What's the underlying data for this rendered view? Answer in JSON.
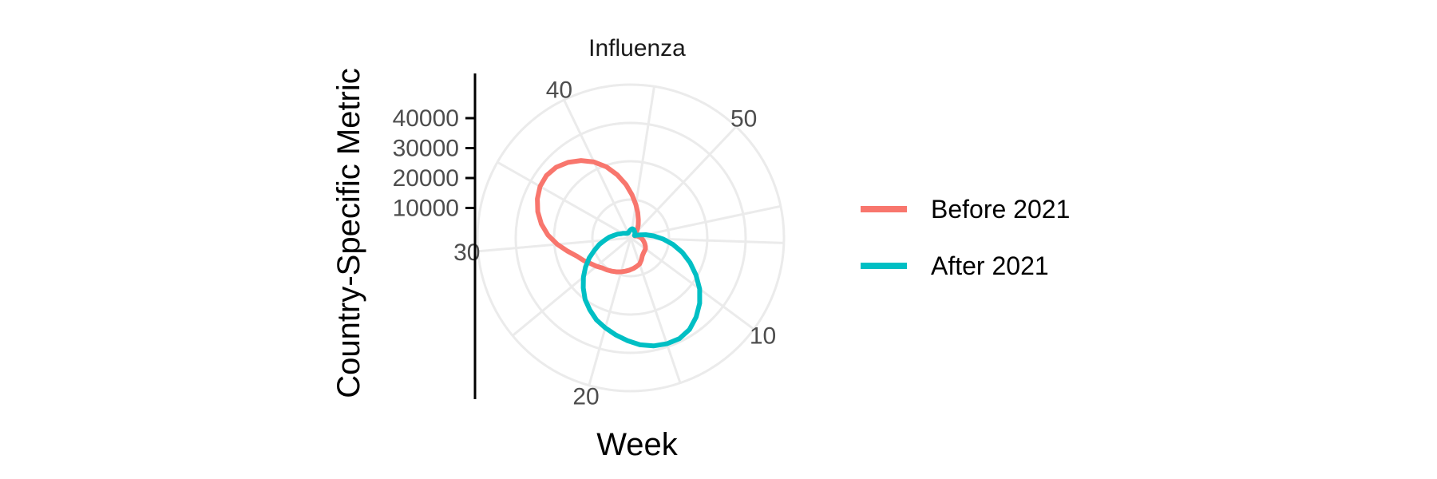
{
  "chart_data": {
    "type": "line",
    "coord": "polar",
    "title": "Influenza",
    "xlabel": "Week",
    "ylabel": "Country-Specific Metric",
    "theta_ticks": [
      "10",
      "20",
      "30",
      "40",
      "50"
    ],
    "y_ticks": [
      "10000",
      "20000",
      "30000",
      "40000"
    ],
    "ylim": [
      0,
      50000
    ],
    "x": [
      1,
      2,
      3,
      4,
      5,
      6,
      7,
      8,
      9,
      10,
      11,
      12,
      13,
      14,
      15,
      16,
      17,
      18,
      19,
      20,
      21,
      22,
      23,
      24,
      25,
      26,
      27,
      28,
      29,
      30,
      31,
      32,
      33,
      34,
      35,
      36,
      37,
      38,
      39,
      40,
      41,
      42,
      43,
      44,
      45,
      46,
      47,
      48,
      49,
      50,
      51,
      52
    ],
    "series": [
      {
        "name": "Before 2021",
        "color": "#F8766D",
        "values": [
          1500,
          2000,
          2500,
          3000,
          3500,
          4000,
          4500,
          5000,
          5500,
          6000,
          6200,
          6500,
          7000,
          8000,
          9000,
          9500,
          10000,
          10500,
          11000,
          11500,
          12000,
          12500,
          13000,
          13500,
          14500,
          15500,
          17000,
          18500,
          21000,
          24000,
          27000,
          29500,
          31500,
          33000,
          34000,
          34200,
          33500,
          32000,
          30000,
          27500,
          24500,
          21000,
          17500,
          14000,
          11000,
          8500,
          6500,
          5000,
          3800,
          2800,
          2000,
          1500
        ]
      },
      {
        "name": "After 2021",
        "color": "#00BFC4",
        "values": [
          2000,
          3000,
          5000,
          7500,
          10500,
          14000,
          17500,
          21000,
          24500,
          28000,
          31000,
          33500,
          35500,
          36500,
          36500,
          36000,
          35000,
          33500,
          32000,
          30500,
          29000,
          27000,
          25000,
          22500,
          20000,
          17500,
          15000,
          12500,
          10500,
          8500,
          7000,
          5500,
          4500,
          3500,
          3000,
          2500,
          2200,
          2000,
          1800,
          1800,
          2000,
          2200,
          2500,
          2800,
          3000,
          3000,
          2800,
          2500,
          2300,
          2000,
          1800,
          1500
        ]
      }
    ],
    "grid": true,
    "legend_position": "right"
  }
}
